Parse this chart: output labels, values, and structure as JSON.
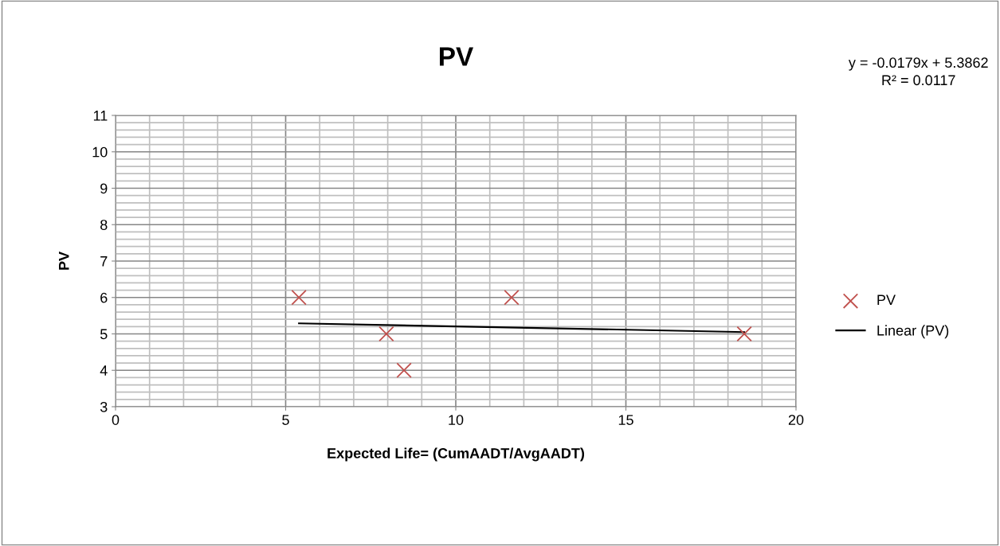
{
  "chart_data": {
    "type": "scatter",
    "title": "PV",
    "xlabel": "Expected Life= (CumAADT/AvgAADT)",
    "ylabel": "PV",
    "xlim": [
      0,
      20
    ],
    "xticks": [
      0,
      5,
      10,
      15,
      20
    ],
    "ylim": [
      3,
      11
    ],
    "yticks": [
      3,
      4,
      5,
      6,
      7,
      8,
      9,
      10,
      11
    ],
    "grid": true,
    "legend": "right",
    "series": [
      {
        "name": "PV",
        "marker": "cross",
        "color": "#c0504d",
        "x": [
          5.39,
          7.96,
          8.48,
          11.64,
          18.48
        ],
        "values": [
          6,
          5,
          4,
          6,
          5
        ]
      },
      {
        "name": "Linear (PV)",
        "type": "line",
        "marker": "none",
        "color": "#000000",
        "line_style": "solid",
        "x": [
          5.39,
          18.48
        ],
        "values": [
          5.29,
          5.05
        ]
      }
    ],
    "annotations": [
      "y = -0.0179x + 5.3862\nR² = 0.0117"
    ]
  }
}
